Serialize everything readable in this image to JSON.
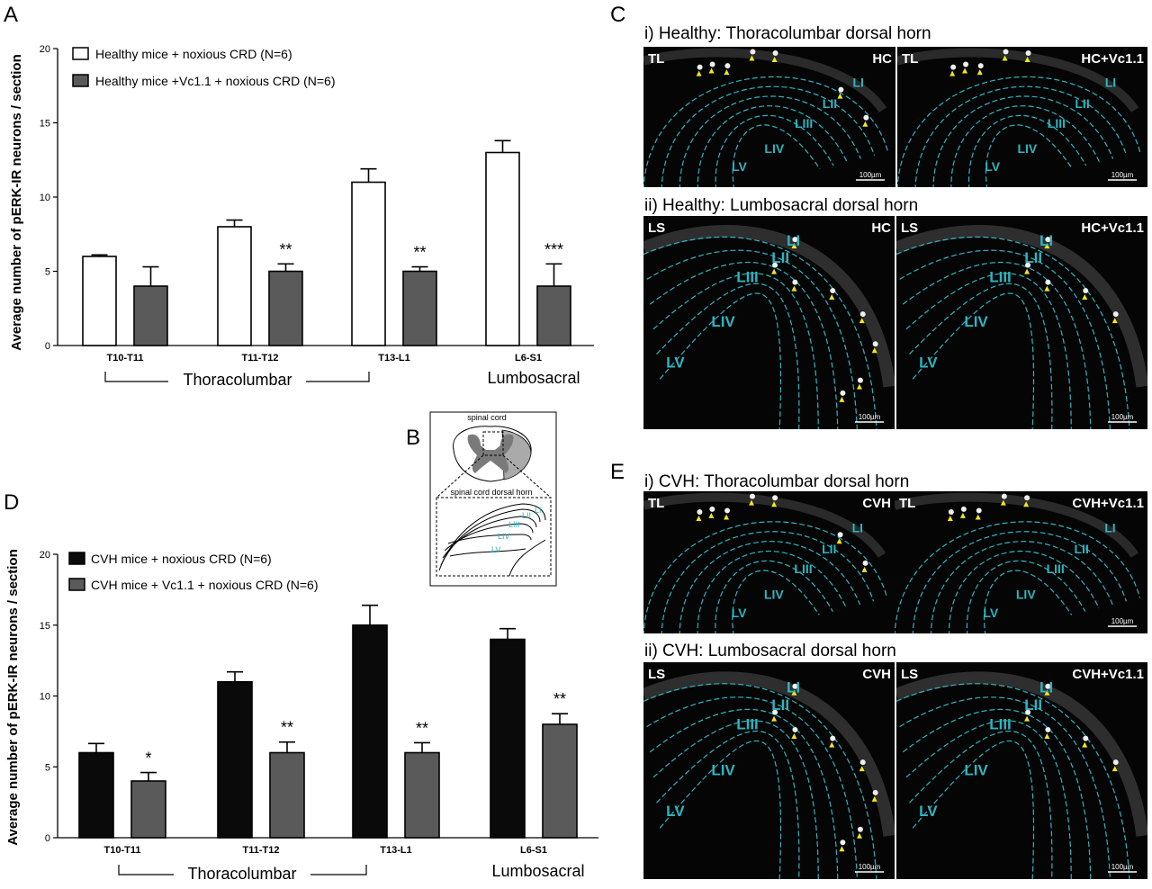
{
  "colors": {
    "healthy_control": "#ffffff",
    "healthy_vc11": "#5a5a5a",
    "cvh_control": "#0a0a0a",
    "cvh_vc11": "#5a5a5a",
    "layer_outline": "#2fb4c0",
    "arrowhead": "#f2e61c",
    "micrograph_bg": "#050505"
  },
  "panels": {
    "A": "A",
    "B": "B",
    "C": "C",
    "D": "D",
    "E": "E"
  },
  "chart_data": [
    {
      "id": "A",
      "type": "bar",
      "ylabel": "Average number of pERK-IR neurons / section",
      "ylim": [
        0,
        20
      ],
      "yticks": [
        "0",
        "5",
        "10",
        "15",
        "20"
      ],
      "categories": [
        "T10-T11",
        "T11-T12",
        "T13-L1",
        "L6-S1"
      ],
      "series": [
        {
          "name": "Healthy mice + noxious CRD  (N=6)",
          "values": [
            6,
            8,
            11,
            13
          ],
          "errors": [
            0.1,
            0.45,
            0.9,
            0.8
          ]
        },
        {
          "name": "Healthy mice +Vc1.1 + noxious CRD  (N=6)",
          "values": [
            4,
            5,
            5,
            4
          ],
          "errors": [
            1.3,
            0.5,
            0.3,
            1.5
          ]
        }
      ],
      "significance": [
        "",
        "**",
        "**",
        "***"
      ],
      "groups": [
        "Thoracolumbar",
        "Lumbosacral"
      ],
      "legend_position": "top-left"
    },
    {
      "id": "D",
      "type": "bar",
      "ylabel": "Average number of pERK-IR neurons / section",
      "ylim": [
        0,
        20
      ],
      "yticks": [
        "0",
        "5",
        "10",
        "15",
        "20"
      ],
      "categories": [
        "T10-T11",
        "T11-T12",
        "T13-L1",
        "L6-S1"
      ],
      "series": [
        {
          "name": "CVH mice + noxious CRD (N=6)",
          "values": [
            6,
            11,
            15,
            14
          ],
          "errors": [
            0.65,
            0.7,
            1.4,
            0.75
          ]
        },
        {
          "name": "CVH mice + Vc1.1 + noxious CRD (N=6)",
          "values": [
            4,
            6,
            6,
            8
          ],
          "errors": [
            0.6,
            0.75,
            0.7,
            0.75
          ]
        }
      ],
      "significance": [
        "*",
        "**",
        "**",
        "**"
      ],
      "groups": [
        "Thoracolumbar",
        "Lumbosacral"
      ],
      "legend_position": "top-left"
    }
  ],
  "diagram_B": {
    "top_label": "spinal cord",
    "bottom_label": "spinal cord dorsal horn",
    "layers": [
      "LI",
      "LII",
      "LIII",
      "LIV",
      "LV"
    ]
  },
  "panel_C": {
    "title_i": "i) Healthy: Thoracolumbar dorsal horn",
    "title_ii": "ii) Healthy: Lumbosacral dorsal horn",
    "images": [
      {
        "region": "TL",
        "condition": "HC",
        "layers": [
          "LI",
          "LII",
          "LIII",
          "LIV",
          "LV"
        ],
        "scale": "100µm"
      },
      {
        "region": "TL",
        "condition": "HC+Vc1.1",
        "layers": [
          "LI",
          "LII",
          "LIII",
          "LIV",
          "LV"
        ],
        "scale": "100µm"
      },
      {
        "region": "LS",
        "condition": "HC",
        "layers": [
          "LI",
          "LII",
          "LIII",
          "LIV",
          "LV"
        ],
        "scale": "100µm"
      },
      {
        "region": "LS",
        "condition": "HC+Vc1.1",
        "layers": [
          "LI",
          "LII",
          "LIII",
          "LIV",
          "LV"
        ],
        "scale": "100µm"
      }
    ]
  },
  "panel_E": {
    "title_i": "i) CVH: Thoracolumbar dorsal horn",
    "title_ii": "ii) CVH: Lumbosacral dorsal horn",
    "images": [
      {
        "region": "TL",
        "condition": "CVH",
        "layers": [
          "LI",
          "LII",
          "LIII",
          "LIV",
          "LV"
        ],
        "scale": ""
      },
      {
        "region": "TL",
        "condition": "CVH+Vc1.1",
        "layers": [
          "LI",
          "LII",
          "LIII",
          "LIV",
          "LV"
        ],
        "scale": "100µm"
      },
      {
        "region": "LS",
        "condition": "CVH",
        "layers": [
          "LI",
          "LII",
          "LIII",
          "LIV",
          "LV"
        ],
        "scale": "100µm"
      },
      {
        "region": "LS",
        "condition": "CVH+Vc1.1",
        "layers": [
          "LI",
          "LII",
          "LIII",
          "LIV",
          "LV"
        ],
        "scale": "100µm"
      }
    ]
  }
}
